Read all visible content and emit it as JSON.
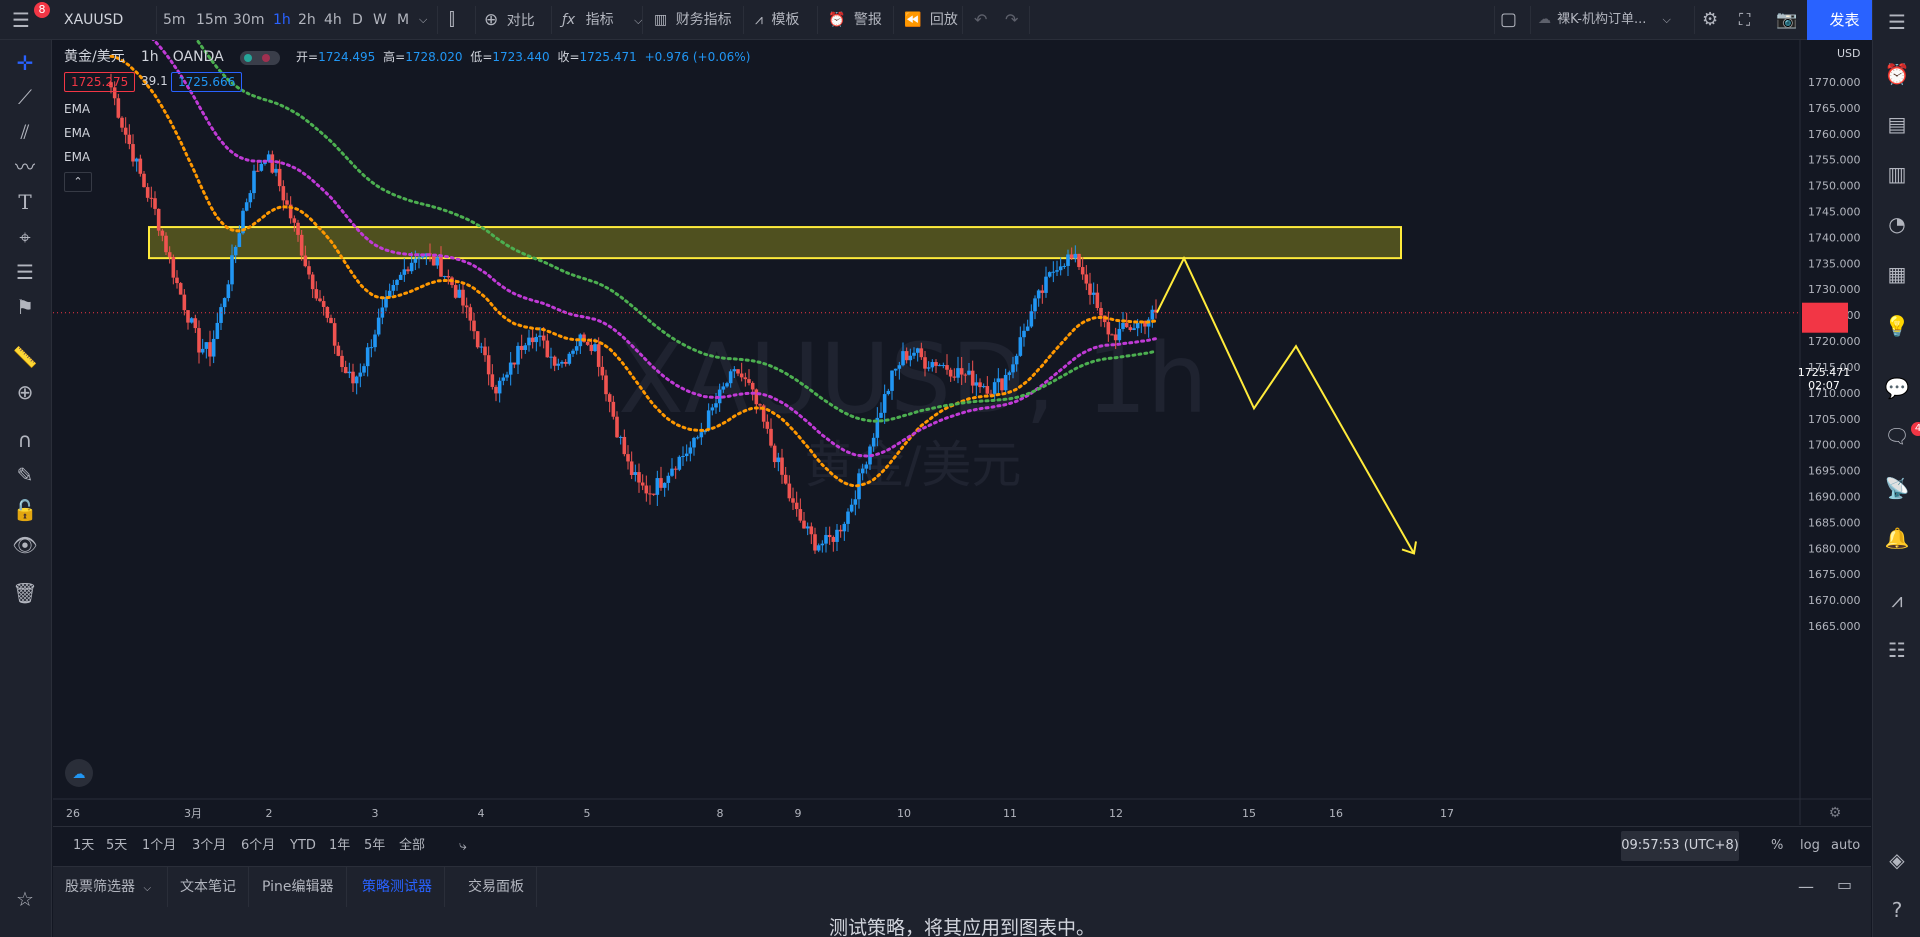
{
  "topbar": {
    "menu_badge": "8",
    "symbol": "XAUUSD",
    "timeframes": [
      "5m",
      "15m",
      "30m",
      "1h",
      "2h",
      "4h",
      "D",
      "W",
      "M"
    ],
    "active_timeframe": "1h",
    "compare_label": "对比",
    "indicators_label": "指标",
    "financials_label": "财务指标",
    "templates_label": "模板",
    "alerts_label": "警报",
    "replay_label": "回放",
    "layout_name": "裸K-机构订单...",
    "publish_label": "发表"
  },
  "legend": {
    "title": "黄金/美元",
    "interval": "1h",
    "source": "OANDA",
    "open_label": "开=",
    "open": "1724.495",
    "high_label": "高=",
    "high": "1728.020",
    "low_label": "低=",
    "low": "1723.440",
    "close_label": "收=",
    "close": "1725.471",
    "change": "+0.976 (+0.06%)",
    "bid": "1725.275",
    "spread": "39.1",
    "ask": "1725.666",
    "indicators": [
      "EMA",
      "EMA",
      "EMA"
    ]
  },
  "watermark": {
    "symbol": "XAUUSD, 1h",
    "name": "黄金/美元"
  },
  "colors": {
    "up": "#26a69a",
    "up_candle": "#2196f3",
    "down_candle": "#ef5350",
    "ema_fast": "#ff9800",
    "ema_mid": "#c03ad6",
    "ema_slow": "#4caf50",
    "zone_fill": "#5a5a1e",
    "zone_stroke": "#ffeb3b",
    "projection": "#ffeb3b",
    "price_tag": "#f23645"
  },
  "price_axis": {
    "currency": "USD",
    "ticks": [
      1770,
      1765,
      1760,
      1755,
      1750,
      1745,
      1740,
      1735,
      1730,
      1725,
      1720,
      1715,
      1710,
      1705,
      1700,
      1695,
      1690,
      1685,
      1680,
      1675,
      1670,
      1665
    ],
    "current_price": "1725.471",
    "countdown": "02:07"
  },
  "time_axis": [
    "26",
    "3月",
    "2",
    "3",
    "4",
    "5",
    "8",
    "9",
    "10",
    "11",
    "12",
    "15",
    "16",
    "17"
  ],
  "chart_data": {
    "type": "candlestick",
    "symbol": "XAUUSD",
    "interval": "1h",
    "ylim": [
      1661,
      1779
    ],
    "zone": [
      1736,
      1742
    ],
    "projection_path": [
      {
        "x": "12",
        "y": 1725.5
      },
      {
        "x": "12+",
        "y": 1736
      },
      {
        "x": "15",
        "y": 1707
      },
      {
        "x": "15+",
        "y": 1719
      },
      {
        "x": "16+",
        "y": 1679
      }
    ],
    "closes": [
      1769,
      1762,
      1756,
      1750,
      1745,
      1738,
      1731,
      1725,
      1719,
      1718,
      1726,
      1735,
      1745,
      1752,
      1756,
      1752,
      1746,
      1740,
      1733,
      1728,
      1722,
      1715,
      1712,
      1716,
      1722,
      1727,
      1731,
      1735,
      1737,
      1736,
      1734,
      1731,
      1727,
      1722,
      1716,
      1711,
      1713,
      1718,
      1722,
      1720,
      1717,
      1716,
      1719,
      1721,
      1719,
      1711,
      1703,
      1696,
      1692,
      1691,
      1693,
      1696,
      1698,
      1700,
      1704,
      1708,
      1712,
      1714,
      1711,
      1706,
      1700,
      1694,
      1688,
      1684,
      1681,
      1681,
      1683,
      1687,
      1693,
      1700,
      1707,
      1713,
      1717,
      1718,
      1716,
      1716,
      1715,
      1714,
      1713,
      1712,
      1711,
      1712,
      1716,
      1722,
      1727,
      1731,
      1735,
      1736,
      1735,
      1730,
      1724,
      1721,
      1722,
      1723,
      1724,
      1725.5
    ]
  },
  "rangebar": {
    "ranges": [
      "1天",
      "5天",
      "1个月",
      "3个月",
      "6个月",
      "YTD",
      "1年",
      "5年",
      "全部"
    ],
    "time": "09:57:53 (UTC+8)",
    "pct": "%",
    "log": "log",
    "auto": "auto"
  },
  "bottompanel": {
    "tabs": [
      "股票筛选器",
      "文本笔记",
      "Pine编辑器",
      "策略测试器",
      "交易面板"
    ],
    "active_tab": "策略测试器",
    "message": "测试策略，将其应用到图表中。"
  },
  "rightbar": {
    "badge": "4"
  }
}
